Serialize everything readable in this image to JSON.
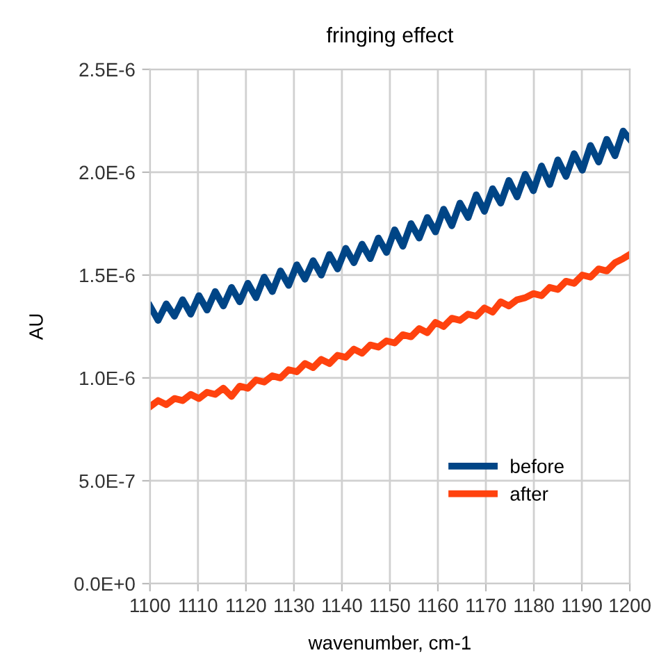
{
  "chart_data": {
    "type": "line",
    "title": "fringing effect",
    "xlabel": "wavenumber, cm-1",
    "ylabel": "AU",
    "x": [
      1100.0,
      1101.7,
      1103.4,
      1105.1,
      1106.8,
      1108.5,
      1110.2,
      1111.9,
      1113.6,
      1115.3,
      1117.0,
      1118.7,
      1120.4,
      1122.1,
      1123.8,
      1125.5,
      1127.2,
      1128.9,
      1130.6,
      1132.3,
      1134.0,
      1135.7,
      1137.4,
      1139.1,
      1140.8,
      1142.5,
      1144.2,
      1145.9,
      1147.6,
      1149.3,
      1151.0,
      1152.7,
      1154.4,
      1156.1,
      1157.8,
      1159.5,
      1161.2,
      1162.9,
      1164.6,
      1166.3,
      1168.0,
      1169.7,
      1171.4,
      1173.1,
      1174.8,
      1176.5,
      1178.2,
      1179.9,
      1181.6,
      1183.3,
      1185.0,
      1186.7,
      1188.4,
      1190.1,
      1191.8,
      1193.5,
      1195.2,
      1196.9,
      1198.6,
      1200.0
    ],
    "series": [
      {
        "name": "before",
        "color": "#004586",
        "values": [
          1.35e-06,
          1.28e-06,
          1.36e-06,
          1.3e-06,
          1.38e-06,
          1.31e-06,
          1.4e-06,
          1.33e-06,
          1.42e-06,
          1.35e-06,
          1.44e-06,
          1.37e-06,
          1.46e-06,
          1.39e-06,
          1.49e-06,
          1.42e-06,
          1.52e-06,
          1.45e-06,
          1.55e-06,
          1.48e-06,
          1.57e-06,
          1.5e-06,
          1.6e-06,
          1.53e-06,
          1.63e-06,
          1.56e-06,
          1.65e-06,
          1.58e-06,
          1.68e-06,
          1.61e-06,
          1.72e-06,
          1.64e-06,
          1.75e-06,
          1.68e-06,
          1.78e-06,
          1.71e-06,
          1.82e-06,
          1.74e-06,
          1.85e-06,
          1.78e-06,
          1.89e-06,
          1.81e-06,
          1.92e-06,
          1.85e-06,
          1.96e-06,
          1.88e-06,
          1.99e-06,
          1.91e-06,
          2.03e-06,
          1.94e-06,
          2.06e-06,
          1.98e-06,
          2.09e-06,
          2.01e-06,
          2.13e-06,
          2.05e-06,
          2.16e-06,
          2.08e-06,
          2.2e-06,
          2.16e-06
        ]
      },
      {
        "name": "after",
        "color": "#ff420e",
        "values": [
          8.6e-07,
          8.9e-07,
          8.7e-07,
          9e-07,
          8.9e-07,
          9.2e-07,
          9e-07,
          9.3e-07,
          9.2e-07,
          9.5e-07,
          9.1e-07,
          9.6e-07,
          9.5e-07,
          9.9e-07,
          9.8e-07,
          1.01e-06,
          1e-06,
          1.04e-06,
          1.03e-06,
          1.07e-06,
          1.05e-06,
          1.09e-06,
          1.07e-06,
          1.11e-06,
          1.1e-06,
          1.14e-06,
          1.12e-06,
          1.16e-06,
          1.15e-06,
          1.18e-06,
          1.17e-06,
          1.21e-06,
          1.2e-06,
          1.24e-06,
          1.22e-06,
          1.27e-06,
          1.25e-06,
          1.29e-06,
          1.28e-06,
          1.31e-06,
          1.3e-06,
          1.34e-06,
          1.32e-06,
          1.37e-06,
          1.35e-06,
          1.38e-06,
          1.39e-06,
          1.41e-06,
          1.4e-06,
          1.44e-06,
          1.43e-06,
          1.47e-06,
          1.46e-06,
          1.5e-06,
          1.49e-06,
          1.53e-06,
          1.52e-06,
          1.56e-06,
          1.58e-06,
          1.6e-06
        ]
      }
    ],
    "xlim": [
      1100,
      1200
    ],
    "xticks": [
      1100,
      1110,
      1120,
      1130,
      1140,
      1150,
      1160,
      1170,
      1180,
      1190,
      1200
    ],
    "ylim": [
      0,
      2.5e-06
    ],
    "yticks": [
      {
        "value": 0,
        "label": "0.0E+0"
      },
      {
        "value": 5e-07,
        "label": "5.0E-7"
      },
      {
        "value": 1e-06,
        "label": "1.0E-6"
      },
      {
        "value": 1.5e-06,
        "label": "1.5E-6"
      },
      {
        "value": 2e-06,
        "label": "2.0E-6"
      },
      {
        "value": 2.5e-06,
        "label": "2.5E-6"
      }
    ],
    "grid": true,
    "legend": "bottom right",
    "marker": "none",
    "line_style": "solid"
  }
}
